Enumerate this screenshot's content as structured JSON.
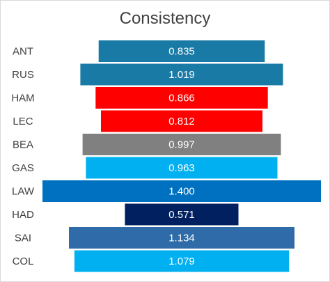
{
  "chart_data": {
    "type": "bar",
    "orientation": "horizontal-centered",
    "title": "Consistency",
    "categories": [
      "ANT",
      "RUS",
      "HAM",
      "LEC",
      "BEA",
      "GAS",
      "LAW",
      "HAD",
      "SAI",
      "COL"
    ],
    "values": [
      0.835,
      1.019,
      0.866,
      0.812,
      0.997,
      0.963,
      1.4,
      0.571,
      1.134,
      1.079
    ],
    "labels": [
      "0.835",
      "1.019",
      "0.866",
      "0.812",
      "0.997",
      "0.963",
      "1.400",
      "0.571",
      "1.134",
      "1.079"
    ],
    "colors": [
      "#1a7aa6",
      "#1a7aa6",
      "#ff0000",
      "#ff0000",
      "#808080",
      "#00b0f0",
      "#0070c0",
      "#002060",
      "#2e6ba8",
      "#00b0f0"
    ],
    "grid": false,
    "legend": "none"
  }
}
